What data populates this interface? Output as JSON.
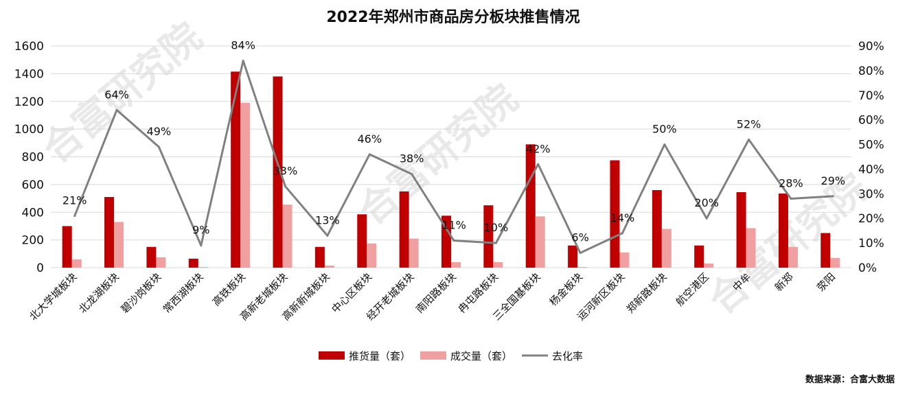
{
  "chart_data": {
    "type": "bar",
    "title": "2022年郑州市商品房分板块推售情况",
    "categories": [
      "北大学城板块",
      "北龙湖板块",
      "碧沙岗板块",
      "常西湖板块",
      "高铁板块",
      "高新老城板块",
      "高新新城板块",
      "中心区板块",
      "经开老城板块",
      "南阳路板块",
      "冉屯路板块",
      "三全国基板块",
      "杨金板块",
      "运河新区板块",
      "郑新路板块",
      "航空港区",
      "中牟",
      "新郑",
      "荥阳"
    ],
    "series": [
      {
        "name": "推货量（套）",
        "type": "bar",
        "axis": "left",
        "color": "#c00000",
        "values": [
          300,
          510,
          150,
          65,
          1415,
          1380,
          150,
          385,
          550,
          375,
          450,
          890,
          160,
          775,
          560,
          160,
          545,
          535,
          250
        ]
      },
      {
        "name": "成交量（套）",
        "type": "bar",
        "axis": "left",
        "color": "#f0a0a0",
        "values": [
          60,
          330,
          75,
          5,
          1190,
          455,
          15,
          175,
          210,
          40,
          40,
          370,
          5,
          110,
          280,
          30,
          285,
          150,
          70
        ]
      },
      {
        "name": "去化率",
        "type": "line",
        "axis": "right",
        "color": "#808080",
        "values": [
          0.21,
          0.64,
          0.49,
          0.09,
          0.84,
          0.33,
          0.13,
          0.46,
          0.38,
          0.11,
          0.1,
          0.42,
          0.06,
          0.14,
          0.5,
          0.2,
          0.52,
          0.28,
          0.29
        ],
        "labels": [
          "21%",
          "64%",
          "49%",
          "9%",
          "84%",
          "33%",
          "13%",
          "46%",
          "38%",
          "11%",
          "10%",
          "42%",
          "6%",
          "14%",
          "50%",
          "20%",
          "52%",
          "28%",
          "29%"
        ]
      }
    ],
    "y_left": {
      "min": 0,
      "max": 1600,
      "ticks": [
        "0",
        "200",
        "400",
        "600",
        "800",
        "1000",
        "1200",
        "1400",
        "1600"
      ]
    },
    "y_right": {
      "min": 0,
      "max": 0.9,
      "ticks": [
        "0%",
        "10%",
        "20%",
        "30%",
        "40%",
        "50%",
        "60%",
        "70%",
        "80%",
        "90%"
      ]
    },
    "grid": true,
    "legend_position": "bottom"
  },
  "source_note": "数据来源：合富大数据",
  "watermark": "合富研究院"
}
